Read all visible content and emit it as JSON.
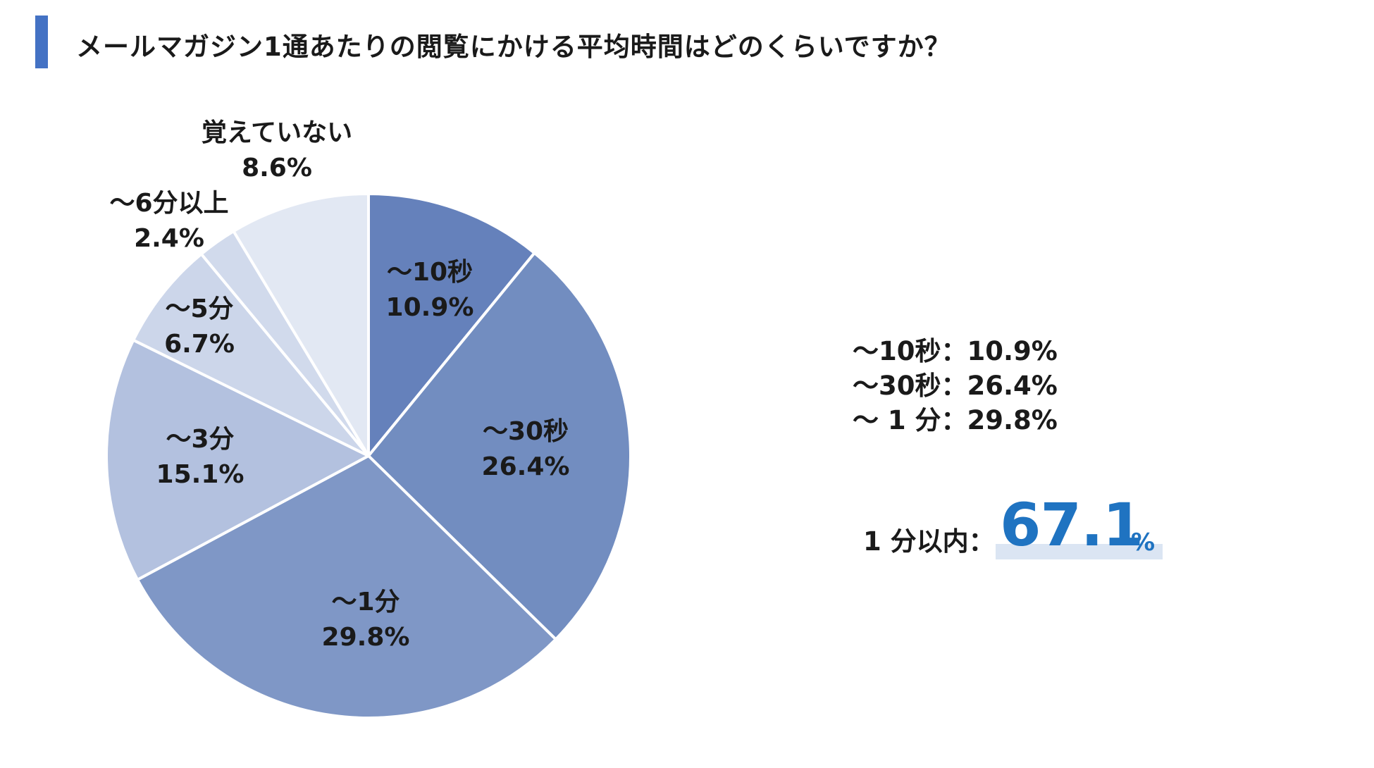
{
  "header": {
    "title": "メールマガジン1通あたりの閲覧にかける平均時間はどのくらいですか？",
    "accent_color": "#4472c4"
  },
  "chart_data": {
    "type": "pie",
    "title": "メールマガジン1通あたりの閲覧にかける平均時間はどのくらいですか？",
    "start_angle_deg": 0,
    "direction": "clockwise",
    "slices": [
      {
        "label": "〜10秒",
        "value": 10.9,
        "value_label": "10.9%",
        "color": "#6581bb"
      },
      {
        "label": "〜30秒",
        "value": 26.4,
        "value_label": "26.4%",
        "color": "#728dc0"
      },
      {
        "label": "〜1分",
        "value": 29.8,
        "value_label": "29.8%",
        "color": "#7f97c6"
      },
      {
        "label": "〜3分",
        "value": 15.1,
        "value_label": "15.1%",
        "color": "#b3c1df"
      },
      {
        "label": "〜5分",
        "value": 6.7,
        "value_label": "6.7%",
        "color": "#ccd6ea"
      },
      {
        "label": "〜6分以上",
        "value": 2.4,
        "value_label": "2.4%",
        "color": "#d1daec"
      },
      {
        "label": "覚えていない",
        "value": 8.6,
        "value_label": "8.6%",
        "color": "#e2e8f3"
      }
    ]
  },
  "summary": {
    "lines": [
      "〜10秒：10.9%",
      "〜30秒：26.4%",
      "〜 1 分：29.8%"
    ],
    "total_label": "1 分以内：",
    "total_value": "67.1",
    "total_unit": "%",
    "total_color": "#1f73c1"
  }
}
